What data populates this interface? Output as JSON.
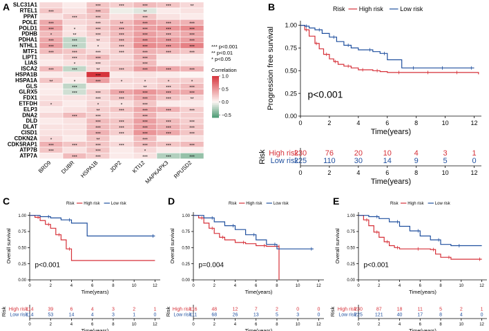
{
  "colors": {
    "high": "#d62f37",
    "low": "#1f4f9e",
    "heat_high": "#d6343c",
    "heat_mid": "#fdf5f3",
    "heat_low": "#4a9b73",
    "risk_high_text": "#d62f37",
    "risk_low_text": "#1f4f9e"
  },
  "panels": {
    "A": "A",
    "B": "B",
    "C": "C",
    "D": "D",
    "E": "E"
  },
  "chart_data": [
    {
      "type": "heatmap",
      "id": "A",
      "rows": [
        "SLC31A1",
        "RTEL1",
        "PPAT",
        "POLE",
        "POLD1",
        "PDHB",
        "PDHA1",
        "NTHL1",
        "MTF1",
        "LIPT1",
        "LIAS",
        "ISCA2",
        "HSPA1B",
        "HSPA1A",
        "GLS",
        "GLRX5",
        "FDX1",
        "ETFDH",
        "ELP3",
        "DNA2",
        "DLD",
        "DLAT",
        "CISD1",
        "CDKN2A",
        "CDK5RAP1",
        "ATP7B",
        "ATP7A"
      ],
      "columns": [
        "BRD9",
        "DUBR",
        "HSPA1B",
        "JDP2",
        "KTI12",
        "MAPKAPK3",
        "RPUSD2"
      ],
      "values": [
        [
          0.15,
          0.05,
          0.25,
          0.2,
          0.3,
          0.25,
          0.15
        ],
        [
          0.25,
          0.1,
          0.3,
          -0.05,
          -0.1,
          0.05,
          0.1
        ],
        [
          0.1,
          0.2,
          0.25,
          0.1,
          0.25,
          0.1,
          0.05
        ],
        [
          0.4,
          0.15,
          0.2,
          0.3,
          0.45,
          0.35,
          0.35
        ],
        [
          0.45,
          0.1,
          0.25,
          0.35,
          0.45,
          0.5,
          0.55
        ],
        [
          0.3,
          0.1,
          0.2,
          0.3,
          0.45,
          0.35,
          0.4
        ],
        [
          0.4,
          -0.2,
          0.15,
          0.3,
          0.5,
          0.45,
          0.45
        ],
        [
          0.45,
          -0.2,
          0.1,
          0.25,
          0.55,
          0.5,
          0.6
        ],
        [
          0.3,
          0.25,
          0.15,
          0.2,
          0.35,
          0.3,
          0.25
        ],
        [
          0.1,
          0.2,
          0.3,
          0.15,
          0.35,
          0.1,
          0.05
        ],
        [
          0.05,
          0.1,
          0.15,
          0.2,
          0.3,
          0.05,
          0.1
        ],
        [
          0.3,
          -0.2,
          0.15,
          0.25,
          0.45,
          0.4,
          0.35
        ],
        [
          0.05,
          0.1,
          1.0,
          0.05,
          0.1,
          0.05,
          0.0
        ],
        [
          0.25,
          0.05,
          0.45,
          0.15,
          0.15,
          0.2,
          0.2
        ],
        [
          0.05,
          -0.2,
          0.05,
          0.1,
          0.15,
          0.2,
          0.3
        ],
        [
          0.05,
          -0.15,
          0.2,
          0.4,
          0.5,
          0.4,
          0.4
        ],
        [
          0.1,
          0.1,
          0.15,
          0.25,
          0.4,
          0.25,
          0.15
        ],
        [
          0.15,
          0.05,
          0.15,
          0.1,
          0.25,
          0.05,
          0.05
        ],
        [
          0.05,
          0.1,
          0.2,
          0.25,
          0.4,
          0.35,
          0.2
        ],
        [
          0.15,
          0.3,
          0.2,
          0.15,
          0.35,
          0.15,
          0.2
        ],
        [
          0.05,
          0.1,
          0.3,
          0.25,
          0.45,
          0.3,
          0.2
        ],
        [
          0.1,
          0.1,
          0.3,
          0.25,
          0.45,
          0.35,
          0.25
        ],
        [
          0.1,
          0.1,
          0.35,
          0.2,
          0.5,
          0.4,
          0.25
        ],
        [
          0.15,
          0.05,
          0.25,
          0.05,
          0.3,
          0.05,
          0.1
        ],
        [
          0.35,
          0.25,
          0.25,
          0.15,
          0.3,
          0.25,
          0.3
        ],
        [
          0.25,
          0.1,
          0.25,
          0.05,
          0.15,
          0.05,
          0.05
        ],
        [
          0.05,
          0.3,
          0.2,
          0.05,
          0.1,
          -0.25,
          -0.35
        ]
      ],
      "stars": [
        [
          "",
          "",
          "***",
          "***",
          "***",
          "***",
          "**"
        ],
        [
          "***",
          "",
          "***",
          "",
          "**",
          "",
          ""
        ],
        [
          "",
          "***",
          "***",
          "",
          "***",
          "",
          ""
        ],
        [
          "***",
          "",
          "***",
          "**",
          "***",
          "***",
          "***"
        ],
        [
          "***",
          "*",
          "***",
          "***",
          "***",
          "***",
          "***"
        ],
        [
          "*",
          "**",
          "***",
          "***",
          "***",
          "***",
          "***"
        ],
        [
          "***",
          "***",
          "**",
          "***",
          "***",
          "***",
          "***"
        ],
        [
          "***",
          "***",
          "*",
          "***",
          "***",
          "***",
          "***"
        ],
        [
          "***",
          "***",
          "***",
          "***",
          "***",
          "***",
          "***"
        ],
        [
          "",
          "***",
          "***",
          "",
          "***",
          "",
          ""
        ],
        [
          "",
          "*",
          "***",
          "",
          "***",
          "",
          ""
        ],
        [
          "***",
          "***",
          "**",
          "***",
          "***",
          "***",
          "***"
        ],
        [
          "",
          "",
          "***",
          "",
          "",
          "",
          ""
        ],
        [
          "**",
          "*",
          "***",
          "*",
          "*",
          "*",
          "*"
        ],
        [
          "",
          "***",
          "",
          "",
          "**",
          "***",
          "***"
        ],
        [
          "",
          "***",
          "***",
          "***",
          "***",
          "***",
          "***"
        ],
        [
          "",
          "",
          "***",
          "***",
          "***",
          "***",
          "**"
        ],
        [
          "*",
          "",
          "*",
          "*",
          "***",
          "",
          ""
        ],
        [
          "",
          "",
          "**",
          "***",
          "***",
          "***",
          "***"
        ],
        [
          "",
          "***",
          "***",
          "",
          "***",
          "",
          ""
        ],
        [
          "",
          "",
          "***",
          "***",
          "***",
          "***",
          "***"
        ],
        [
          "",
          "",
          "***",
          "***",
          "***",
          "***",
          "***"
        ],
        [
          "",
          "",
          "***",
          "***",
          "***",
          "***",
          "***"
        ],
        [
          "*",
          "",
          "**",
          "",
          "***",
          "",
          ""
        ],
        [
          "***",
          "***",
          "***",
          "***",
          "***",
          "***",
          "***"
        ],
        [
          "***",
          "",
          "***",
          "",
          "*",
          "",
          ""
        ],
        [
          "",
          "***",
          "***",
          "",
          "***",
          "***",
          "***"
        ]
      ],
      "sig_legend": [
        "*** p<0.001",
        "** p<0.01",
        "* p<0.05"
      ],
      "colorbar": {
        "title": "Correlation",
        "ticks": [
          1.0,
          0.5,
          0.0,
          -0.5
        ],
        "tick_labels": [
          "1.0",
          "0.5",
          "0.0",
          "−0.5"
        ],
        "range": [
          -0.6,
          1.0
        ]
      }
    },
    {
      "type": "line",
      "id": "B",
      "legend_title": "Risk",
      "legend": [
        "High risk",
        "Low risk"
      ],
      "xlabel": "Time(years)",
      "ylabel": "Progression free survival",
      "xlim": [
        0,
        12.5
      ],
      "ylim": [
        0,
        1.05
      ],
      "xticks": [
        0,
        2,
        4,
        6,
        8,
        10,
        12
      ],
      "yticks": [
        0.0,
        0.25,
        0.5,
        0.75,
        1.0
      ],
      "ytick_labels": [
        "0.00",
        "0.25",
        "0.50",
        "0.75",
        "1.00"
      ],
      "pvalue": "p<0.001",
      "series": [
        {
          "name": "High risk",
          "x": [
            0,
            0.3,
            0.6,
            1,
            1.3,
            1.6,
            2,
            2.3,
            2.6,
            3,
            3.5,
            4,
            4.5,
            5,
            5.5,
            6,
            7,
            8,
            9,
            10,
            11,
            12.3
          ],
          "y": [
            1,
            0.95,
            0.88,
            0.8,
            0.74,
            0.68,
            0.63,
            0.6,
            0.57,
            0.55,
            0.53,
            0.51,
            0.51,
            0.5,
            0.49,
            0.48,
            0.48,
            0.48,
            0.48,
            0.48,
            0.48,
            0.46
          ]
        },
        {
          "name": "Low risk",
          "x": [
            0,
            0.3,
            0.6,
            1,
            1.5,
            2,
            2.5,
            3,
            3.5,
            4,
            5,
            5.5,
            6,
            7,
            8,
            9,
            10,
            11,
            12
          ],
          "y": [
            1,
            0.99,
            0.97,
            0.95,
            0.91,
            0.87,
            0.82,
            0.78,
            0.75,
            0.73,
            0.71,
            0.69,
            0.62,
            0.53,
            0.53,
            0.53,
            0.53,
            0.53,
            0.53
          ]
        }
      ],
      "risk_table": {
        "title": "Risk",
        "times": [
          0,
          2,
          4,
          6,
          8,
          10,
          12
        ],
        "rows": [
          {
            "label": "High risk",
            "counts": [
              230,
              76,
              20,
              10,
              4,
              3,
              1
            ]
          },
          {
            "label": "Low risk",
            "counts": [
              225,
              110,
              30,
              14,
              9,
              5,
              0
            ]
          }
        ]
      }
    },
    {
      "type": "line",
      "id": "C",
      "legend_title": "Risk",
      "legend": [
        "High risk",
        "Low risk"
      ],
      "xlabel": "Time(years)",
      "ylabel": "Overall survival",
      "xlim": [
        0,
        12.5
      ],
      "ylim": [
        0,
        1.05
      ],
      "xticks": [
        0,
        2,
        4,
        6,
        8,
        10,
        12
      ],
      "yticks": [
        0.0,
        0.25,
        0.5,
        0.75,
        1.0
      ],
      "ytick_labels": [
        "0.00",
        "0.25",
        "0.50",
        "0.75",
        "1.00"
      ],
      "pvalue": "p<0.001",
      "series": [
        {
          "name": "High risk",
          "x": [
            0,
            0.5,
            1,
            1.5,
            2,
            2.5,
            3,
            3.5,
            4,
            12
          ],
          "y": [
            1,
            0.97,
            0.92,
            0.86,
            0.8,
            0.7,
            0.62,
            0.48,
            0.3,
            0.3
          ]
        },
        {
          "name": "Low risk",
          "x": [
            0,
            1,
            2,
            3,
            4,
            5.5,
            12
          ],
          "y": [
            1,
            0.98,
            0.96,
            0.93,
            0.88,
            0.68,
            0.68
          ]
        }
      ],
      "risk_table": {
        "title": "Risk",
        "times": [
          0,
          2,
          4,
          6,
          8,
          10,
          12
        ],
        "rows": [
          {
            "label": "High risk",
            "counts": [
              114,
              39,
              6,
              4,
              3,
              2,
              1
            ]
          },
          {
            "label": "Low risk",
            "counts": [
              114,
              53,
              14,
              4,
              3,
              1,
              0
            ]
          }
        ]
      }
    },
    {
      "type": "line",
      "id": "D",
      "legend_title": "Risk",
      "legend": [
        "High risk",
        "Low risk"
      ],
      "xlabel": "Time(years)",
      "ylabel": "Overall survival",
      "xlim": [
        0,
        12.5
      ],
      "ylim": [
        0,
        1.05
      ],
      "xticks": [
        0,
        2,
        4,
        6,
        8,
        10,
        12
      ],
      "yticks": [
        0.0,
        0.25,
        0.5,
        0.75,
        1.0
      ],
      "ytick_labels": [
        "0.00",
        "0.25",
        "0.50",
        "0.75",
        "1.00"
      ],
      "pvalue": "p=0.004",
      "series": [
        {
          "name": "High risk",
          "x": [
            0,
            0.5,
            1,
            1.5,
            2,
            2.5,
            3,
            4,
            5,
            6,
            7,
            8,
            8.2
          ],
          "y": [
            1,
            0.96,
            0.88,
            0.8,
            0.72,
            0.66,
            0.62,
            0.58,
            0.56,
            0.53,
            0.52,
            0.52,
            0.0
          ]
        },
        {
          "name": "Low risk",
          "x": [
            0,
            1,
            2,
            3,
            4,
            5,
            6,
            7,
            8,
            10,
            11.5
          ],
          "y": [
            1,
            0.96,
            0.9,
            0.84,
            0.78,
            0.7,
            0.62,
            0.55,
            0.48,
            0.48,
            0.48
          ]
        }
      ],
      "risk_table": {
        "title": "Risk",
        "times": [
          0,
          2,
          4,
          6,
          8,
          10,
          12
        ],
        "rows": [
          {
            "label": "High risk",
            "counts": [
              116,
              48,
              12,
              7,
              2,
              0,
              0
            ]
          },
          {
            "label": "Low risk",
            "counts": [
              111,
              68,
              26,
              13,
              5,
              3,
              0
            ]
          }
        ]
      }
    },
    {
      "type": "line",
      "id": "E",
      "legend_title": "Risk",
      "legend": [
        "High risk",
        "Low risk"
      ],
      "xlabel": "Time(years)",
      "ylabel": "Overall survival",
      "xlim": [
        0,
        12.5
      ],
      "ylim": [
        0,
        1.05
      ],
      "xticks": [
        0,
        2,
        4,
        6,
        8,
        10,
        12
      ],
      "yticks": [
        0.0,
        0.25,
        0.5,
        0.75,
        1.0
      ],
      "ytick_labels": [
        "0.00",
        "0.25",
        "0.50",
        "0.75",
        "1.00"
      ],
      "pvalue": "p<0.001",
      "series": [
        {
          "name": "High risk",
          "x": [
            0,
            0.5,
            1,
            1.5,
            2,
            2.5,
            3,
            3.5,
            4,
            5,
            6,
            7,
            7.5,
            8,
            9,
            10,
            12
          ],
          "y": [
            1,
            0.93,
            0.84,
            0.74,
            0.66,
            0.59,
            0.53,
            0.5,
            0.48,
            0.48,
            0.48,
            0.47,
            0.4,
            0.35,
            0.32,
            0.32,
            0.32
          ]
        },
        {
          "name": "Low risk",
          "x": [
            0,
            1,
            2,
            3,
            4,
            5,
            6,
            7,
            8,
            9,
            10,
            12
          ],
          "y": [
            1,
            0.98,
            0.95,
            0.9,
            0.83,
            0.76,
            0.68,
            0.62,
            0.55,
            0.53,
            0.53,
            0.53
          ]
        }
      ],
      "risk_table": {
        "title": "Risk",
        "times": [
          0,
          2,
          4,
          6,
          8,
          10,
          12
        ],
        "rows": [
          {
            "label": "High risk",
            "counts": [
              230,
              87,
              18,
              11,
              5,
              2,
              1
            ]
          },
          {
            "label": "Low risk",
            "counts": [
              225,
              121,
              40,
              17,
              8,
              4,
              0
            ]
          }
        ]
      }
    }
  ]
}
